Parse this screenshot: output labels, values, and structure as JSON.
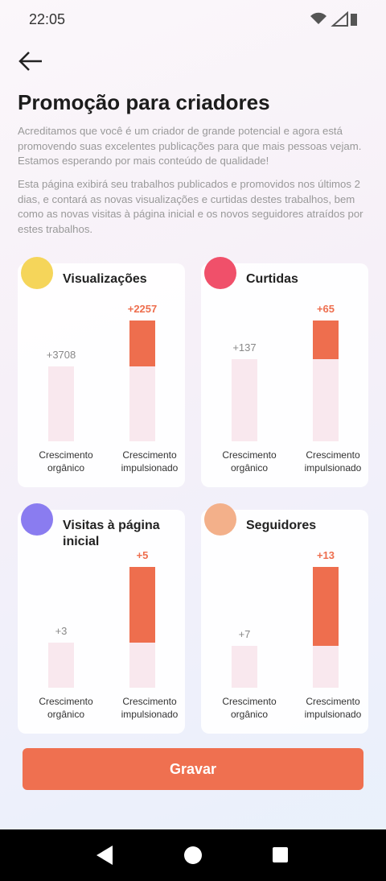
{
  "status_bar": {
    "time": "22:05"
  },
  "header": {
    "title": "Promoção para criadores"
  },
  "paragraphs": [
    "Acreditamos que você é um criador de grande potencial e agora está promovendo suas excelentes publicações para que mais pessoas vejam. Estamos esperando por mais conteúdo de qualidade!",
    "Esta página exibirá seu trabalhos publicados e promovidos nos últimos 2 dias, e contará as novas visualizações e curtidas destes trabalhos, bem como as novas visitas à página inicial e os novos seguidores atraídos por estes trabalhos."
  ],
  "cards": [
    {
      "title": "Visualizações",
      "categories": [
        "Crescimento orgânico",
        "Crescimento impulsionado"
      ],
      "values": [
        3708,
        2257
      ],
      "value_labels": [
        "+3708",
        "+2257"
      ]
    },
    {
      "title": "Curtidas",
      "categories": [
        "Crescimento orgânico",
        "Crescimento impulsionado"
      ],
      "values": [
        137,
        65
      ],
      "value_labels": [
        "+137",
        "+65"
      ]
    },
    {
      "title": "Visitas à página inicial",
      "categories": [
        "Crescimento orgânico",
        "Crescimento impulsionado"
      ],
      "values": [
        3,
        5
      ],
      "value_labels": [
        "+3",
        "+5"
      ]
    },
    {
      "title": "Seguidores",
      "categories": [
        "Crescimento orgânico",
        "Crescimento impulsionado"
      ],
      "values": [
        7,
        13
      ],
      "value_labels": [
        "+7",
        "+13"
      ]
    }
  ],
  "button": {
    "label": "Gravar"
  }
}
